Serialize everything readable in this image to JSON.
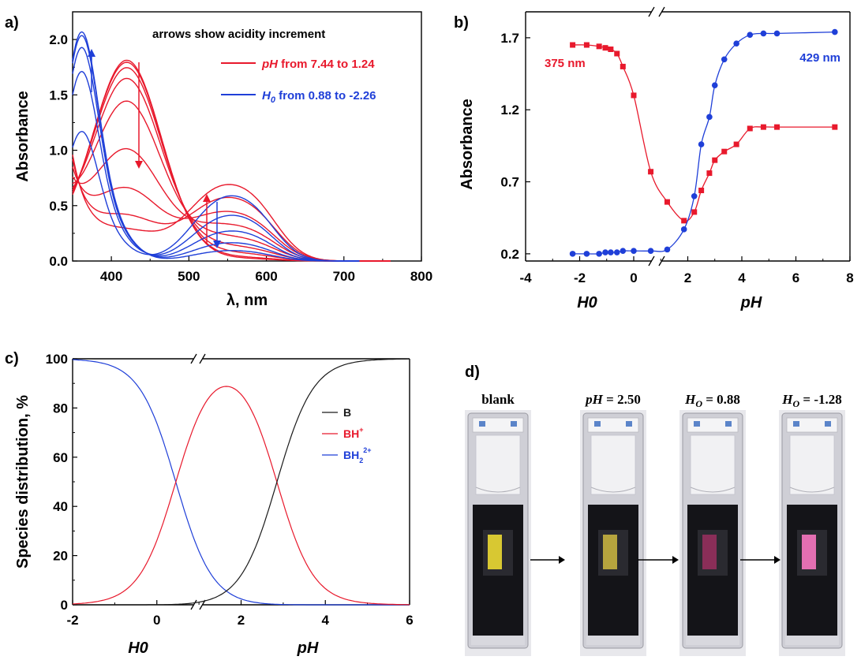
{
  "panel_labels": [
    "a)",
    "b)",
    "c)",
    "d)"
  ],
  "chart_data": [
    {
      "id": "a",
      "type": "line",
      "xlabel": "λ, nm",
      "ylabel": "Absorbance",
      "xlim": [
        350,
        800
      ],
      "ylim": [
        0,
        2.25
      ],
      "xticks": [
        400,
        500,
        600,
        700,
        800
      ],
      "yticks": [
        0.0,
        0.5,
        1.0,
        1.5,
        2.0
      ],
      "tick_labels_y": [
        "0.0",
        "0.5",
        "1.0",
        "1.5",
        "2.0"
      ],
      "annotation": "arrows show acidity increment",
      "legend": [
        {
          "italic": "pH",
          "rest": " from 7.44 to 1.24",
          "color": "#e8192c"
        },
        {
          "italic": "H",
          "sub": "0",
          "rest": " from 0.88 to -2.26",
          "color": "#1f3fd8"
        }
      ],
      "legend_position": "top-right",
      "series_groups": [
        {
          "color": "#e8192c",
          "peak_wavelength": 420,
          "second_peak_wavelength": 540,
          "peak1_heights": [
            1.81,
            1.79,
            1.74,
            1.64,
            1.43,
            0.99,
            0.63,
            0.38,
            0.25
          ],
          "peak2_heights": [
            0.02,
            0.03,
            0.06,
            0.11,
            0.18,
            0.27,
            0.37,
            0.48,
            0.58
          ],
          "uv_edge_350nm": [
            0.6,
            0.62,
            0.64,
            0.66,
            0.7,
            0.76,
            0.85,
            0.92,
            0.96
          ]
        },
        {
          "color": "#1f3fd8",
          "peak_wavelength": 360,
          "second_peak_wavelength": 540,
          "peak1_heights": [
            1.08,
            1.58,
            1.78,
            1.88,
            1.91
          ],
          "peak2_heights": [
            0.5,
            0.35,
            0.23,
            0.14,
            0.08
          ],
          "blue_edge_350nm": [
            0.85,
            1.3,
            1.55,
            1.68,
            1.74
          ]
        }
      ]
    },
    {
      "id": "b",
      "type": "scatter",
      "ylabel": "Absorbance",
      "xlabel_left": "H0",
      "xlabel_right": "pH",
      "xlim": [
        -4,
        8
      ],
      "ylim": [
        0.15,
        1.88
      ],
      "xticks": [
        -4,
        -2,
        0,
        2,
        4,
        6,
        8
      ],
      "yticks": [
        0.2,
        0.7,
        1.2,
        1.7
      ],
      "tick_labels_y": [
        "0.2",
        "0.7",
        "1.2",
        "1.7"
      ],
      "axis_break_x": 1.0,
      "series": [
        {
          "name": "375 nm",
          "color": "#e8192c",
          "marker": "square",
          "x": [
            -2.26,
            -1.74,
            -1.28,
            -1.05,
            -0.85,
            -0.62,
            -0.4,
            0.0,
            0.63,
            1.24,
            1.86,
            2.24,
            2.5,
            2.8,
            3.0,
            3.35,
            3.8,
            4.3,
            4.8,
            5.3,
            7.44
          ],
          "y": [
            1.65,
            1.65,
            1.64,
            1.63,
            1.62,
            1.59,
            1.5,
            1.3,
            0.77,
            0.56,
            0.43,
            0.49,
            0.64,
            0.76,
            0.85,
            0.91,
            0.96,
            1.07,
            1.08,
            1.08,
            1.08
          ]
        },
        {
          "name": "429 nm",
          "color": "#1f3fd8",
          "marker": "circle",
          "x": [
            -2.26,
            -1.74,
            -1.28,
            -1.05,
            -0.85,
            -0.62,
            -0.4,
            0.0,
            0.63,
            1.24,
            1.86,
            2.24,
            2.5,
            2.8,
            3.0,
            3.35,
            3.8,
            4.3,
            4.8,
            5.3,
            7.44
          ],
          "y": [
            0.2,
            0.2,
            0.2,
            0.21,
            0.21,
            0.21,
            0.22,
            0.22,
            0.22,
            0.23,
            0.37,
            0.6,
            0.96,
            1.15,
            1.37,
            1.55,
            1.66,
            1.72,
            1.73,
            1.73,
            1.74
          ]
        }
      ]
    },
    {
      "id": "c",
      "type": "line",
      "ylabel": "Species distribution, %",
      "xlabel_left": "H0",
      "xlabel_right": "pH",
      "xlim": [
        -2,
        6
      ],
      "ylim": [
        0,
        100
      ],
      "xticks": [
        -2,
        0,
        2,
        4,
        6
      ],
      "yticks": [
        0,
        20,
        40,
        60,
        80,
        100
      ],
      "axis_break_x": 1.0,
      "pKa1": 0.45,
      "pKa2": 2.85,
      "legend_position": "top-right",
      "series": [
        {
          "name": "B",
          "color": "#1a1a1a"
        },
        {
          "name": "BH",
          "sup": "+",
          "color": "#e8192c"
        },
        {
          "name": "BH",
          "sub": "2",
          "sup": "2+",
          "color": "#1f3fd8"
        }
      ]
    }
  ],
  "photo_panel": {
    "labels": [
      {
        "text": "blank"
      },
      {
        "italic": "pH",
        "rest": " = 2.50"
      },
      {
        "italic": "H",
        "sub": "O",
        "rest": " = 0.88"
      },
      {
        "italic": "H",
        "sub": "O",
        "rest": " = -1.28"
      }
    ],
    "strip_colors": [
      "#d8c832",
      "#b6a43e",
      "#8a2e58",
      "#e36fb2"
    ]
  }
}
